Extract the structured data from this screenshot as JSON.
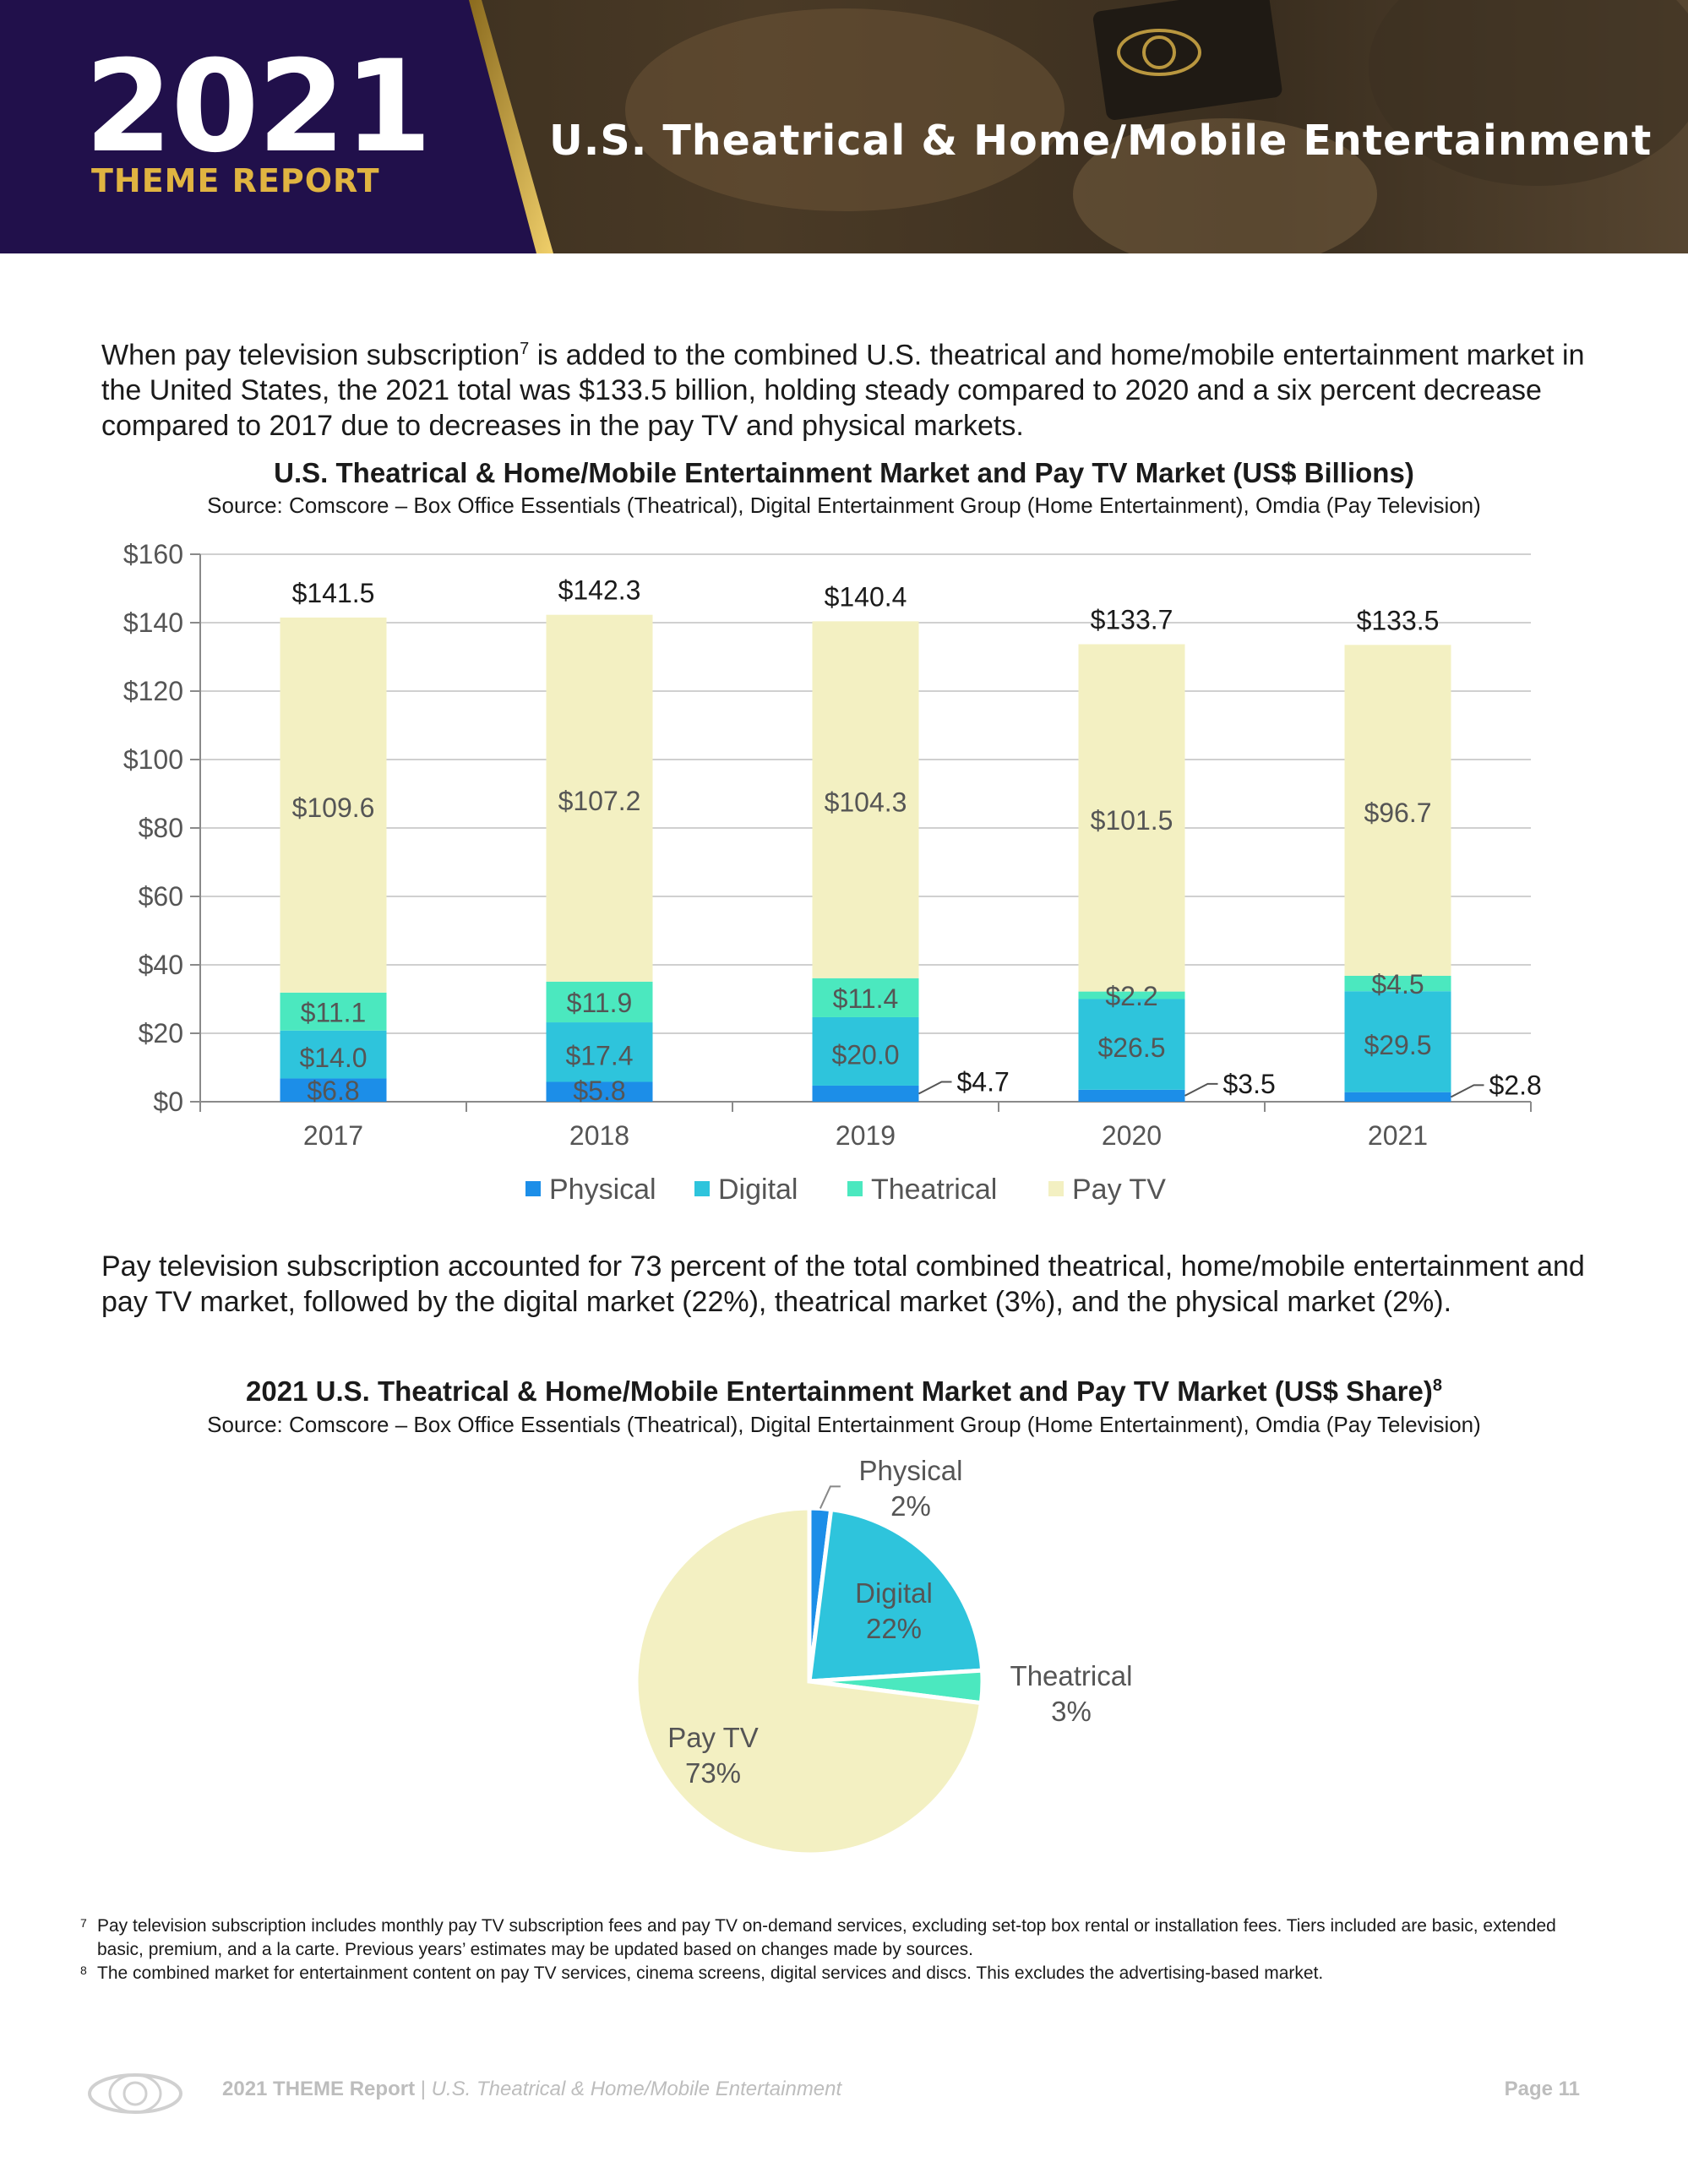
{
  "header": {
    "year": "2021",
    "report_name": "THEME REPORT",
    "page_title": "U.S. Theatrical & Home/Mobile Entertainment"
  },
  "intro_paragraph": {
    "before_sup": "When pay television subscription",
    "sup": "7",
    "after_sup": " is added to the combined U.S. theatrical and home/mobile entertainment market in the United States, the 2021 total was $133.5 billion, holding steady compared to 2020 and a six percent decrease compared to 2017 due to decreases in the pay TV and physical markets."
  },
  "share_paragraph": "Pay television subscription accounted for 73 percent of the total combined theatrical, home/mobile entertainment and pay TV market, followed by the digital market (22%), theatrical market (3%), and the physical market (2%).",
  "colors": {
    "physical": "#1c8ee8",
    "digital": "#2ec4dc",
    "theatrical": "#4be8bf",
    "paytv": "#f3f0c2",
    "header_purple": "#21104b",
    "gold": "#e0b441"
  },
  "chart_data": [
    {
      "type": "bar",
      "stacked": true,
      "title": "U.S. Theatrical & Home/Mobile Entertainment Market and Pay TV Market (US$ Billions)",
      "source": "Source: Comscore – Box Office Essentials (Theatrical), Digital Entertainment Group (Home Entertainment), Omdia (Pay Television)",
      "categories": [
        "2017",
        "2018",
        "2019",
        "2020",
        "2021"
      ],
      "ylim": [
        0,
        160
      ],
      "yticks": [
        0,
        20,
        40,
        60,
        80,
        100,
        120,
        140,
        160
      ],
      "ytick_labels": [
        "$0",
        "$20",
        "$40",
        "$60",
        "$80",
        "$100",
        "$120",
        "$140",
        "$160"
      ],
      "grid": true,
      "legend": "bottom",
      "series": [
        {
          "name": "Physical",
          "values": [
            6.8,
            5.8,
            4.7,
            3.5,
            2.8
          ],
          "labels": [
            "$6.8",
            "$5.8",
            "$4.7",
            "$3.5",
            "$2.8"
          ]
        },
        {
          "name": "Digital",
          "values": [
            14.0,
            17.4,
            20.0,
            26.5,
            29.5
          ],
          "labels": [
            "$14.0",
            "$17.4",
            "$20.0",
            "$26.5",
            "$29.5"
          ]
        },
        {
          "name": "Theatrical",
          "values": [
            11.1,
            11.9,
            11.4,
            2.2,
            4.5
          ],
          "labels": [
            "$11.1",
            "$11.9",
            "$11.4",
            "$2.2",
            "$4.5"
          ]
        },
        {
          "name": "Pay TV",
          "values": [
            109.6,
            107.2,
            104.3,
            101.5,
            96.7
          ],
          "labels": [
            "$109.6",
            "$107.2",
            "$104.3",
            "$101.5",
            "$96.7"
          ]
        }
      ],
      "totals": [
        141.5,
        142.3,
        140.4,
        133.7,
        133.5
      ],
      "total_labels": [
        "$141.5",
        "$142.3",
        "$140.4",
        "$133.7",
        "$133.5"
      ]
    },
    {
      "type": "pie",
      "title_text": "2021 U.S. Theatrical & Home/Mobile Entertainment Market and Pay TV Market (US$ Share)",
      "title_sup": "8",
      "source": "Source: Comscore – Box Office Essentials (Theatrical), Digital Entertainment Group (Home Entertainment), Omdia (Pay Television)",
      "slices": [
        {
          "name": "Physical",
          "value": 2,
          "pct": "2%"
        },
        {
          "name": "Digital",
          "value": 22,
          "pct": "22%"
        },
        {
          "name": "Theatrical",
          "value": 3,
          "pct": "3%"
        },
        {
          "name": "Pay TV",
          "value": 73,
          "pct": "73%"
        }
      ]
    }
  ],
  "footnotes": [
    {
      "num": "7",
      "text": "Pay television subscription includes monthly pay TV subscription fees and pay TV on-demand services, excluding set-top box rental or installation fees. Tiers included are basic, extended basic, premium, and a la carte. Previous years’ estimates may be updated based on changes made by sources."
    },
    {
      "num": "8",
      "text": "The combined market for entertainment content on pay TV services, cinema screens, digital services and discs. This excludes the advertising-based market."
    }
  ],
  "footer": {
    "brand": "2021 THEME Report",
    "separator": " | ",
    "section": "U.S. Theatrical & Home/Mobile Entertainment",
    "page": "Page 11"
  }
}
